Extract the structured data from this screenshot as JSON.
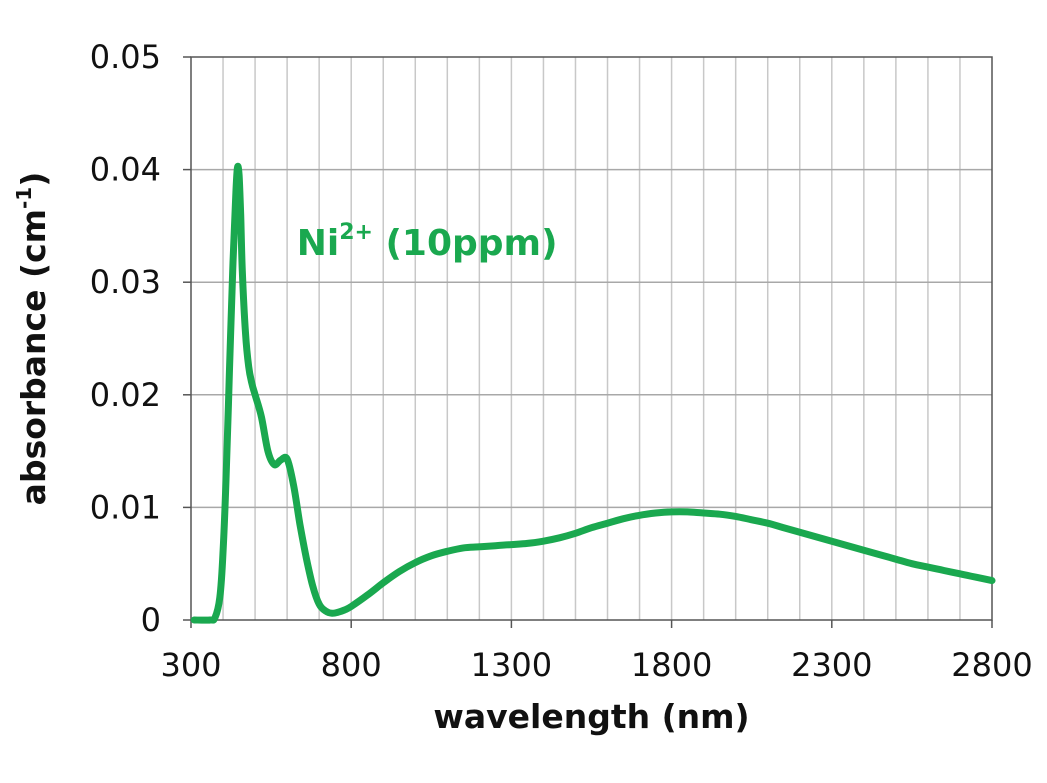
{
  "chart_data": {
    "type": "line",
    "xlabel": "wavelength (nm)",
    "ylabel": "absorbance (cm",
    "ylabel_sup": "-1",
    "ylabel_end": ")",
    "xlim": [
      300,
      2800
    ],
    "ylim": [
      0,
      0.05
    ],
    "x_ticks": [
      300,
      800,
      1300,
      1800,
      2300,
      2800
    ],
    "x_tick_labels": [
      "300",
      "800",
      "1300",
      "1800",
      "2300",
      "2800"
    ],
    "y_ticks": [
      0,
      0.01,
      0.02,
      0.03,
      0.04,
      0.05
    ],
    "y_tick_labels": [
      "0",
      "0.01",
      "0.02",
      "0.03",
      "0.04",
      "0.05"
    ],
    "x_minor_step": 100,
    "grid": true,
    "line_color": "#1aa84f",
    "annotation": {
      "text": "Ni",
      "sup": "2+",
      "rest": " (10ppm)",
      "x": 630,
      "y": 0.0335
    },
    "series": [
      {
        "values_x": [
          310,
          360,
          375,
          390,
          400,
          410,
          420,
          430,
          440,
          445,
          450,
          455,
          460,
          470,
          480,
          490,
          500,
          520,
          540,
          560,
          580,
          600,
          620,
          640,
          660,
          680,
          700,
          720,
          740,
          760,
          780,
          800,
          850,
          900,
          950,
          1000,
          1050,
          1100,
          1150,
          1200,
          1250,
          1300,
          1350,
          1400,
          1450,
          1500,
          1550,
          1600,
          1650,
          1700,
          1750,
          1800,
          1850,
          1900,
          1950,
          2000,
          2050,
          2100,
          2150,
          2200,
          2250,
          2300,
          2350,
          2400,
          2450,
          2500,
          2550,
          2600,
          2650,
          2700,
          2750,
          2800
        ],
        "values_y": [
          0,
          0,
          0.0002,
          0.002,
          0.006,
          0.013,
          0.022,
          0.031,
          0.038,
          0.0402,
          0.0395,
          0.036,
          0.031,
          0.0255,
          0.0225,
          0.021,
          0.02,
          0.018,
          0.015,
          0.0138,
          0.0142,
          0.0143,
          0.012,
          0.0085,
          0.0055,
          0.003,
          0.0014,
          0.0008,
          0.0006,
          0.0007,
          0.0009,
          0.0012,
          0.0022,
          0.0033,
          0.0043,
          0.0051,
          0.0057,
          0.0061,
          0.0064,
          0.0065,
          0.0066,
          0.0067,
          0.0068,
          0.007,
          0.0073,
          0.0077,
          0.0082,
          0.0086,
          0.009,
          0.0093,
          0.0095,
          0.0096,
          0.0096,
          0.0095,
          0.0094,
          0.0092,
          0.0089,
          0.0086,
          0.0082,
          0.0078,
          0.0074,
          0.007,
          0.0066,
          0.0062,
          0.0058,
          0.0054,
          0.005,
          0.0047,
          0.0044,
          0.0041,
          0.0038,
          0.0035
        ]
      }
    ]
  }
}
